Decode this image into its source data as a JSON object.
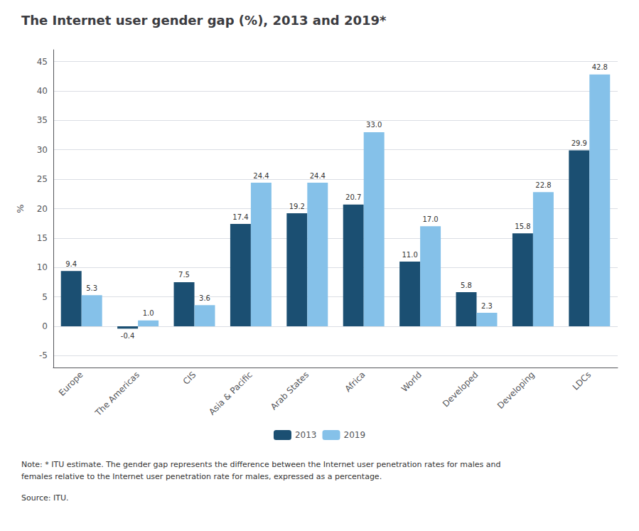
{
  "chart_data": {
    "type": "bar",
    "title": "The Internet user gender gap (%), 2013 and 2019*",
    "categories": [
      "Europe",
      "The Americas",
      "CIS",
      "Asia & Pacific",
      "Arab States",
      "Africa",
      "World",
      "Developed",
      "Developing",
      "LDCs"
    ],
    "series": [
      {
        "name": "2013",
        "color": "#1B4F72",
        "values": [
          9.4,
          -0.4,
          7.5,
          17.4,
          19.2,
          20.7,
          11.0,
          5.8,
          15.8,
          29.9
        ],
        "value_labels": [
          "9.4",
          "-0.4",
          "7.5",
          "17.4",
          "19.2",
          "20.7",
          "11.0",
          "5.8",
          "15.8",
          "29.9"
        ]
      },
      {
        "name": "2019",
        "color": "#85C1E9",
        "values": [
          5.3,
          1.0,
          3.6,
          24.4,
          24.4,
          33.0,
          17.0,
          2.3,
          22.8,
          42.8
        ],
        "value_labels": [
          "5.3",
          "1.0",
          "3.6",
          "24.4",
          "24.4",
          "33.0",
          "17.0",
          "2.3",
          "22.8",
          "42.8"
        ]
      }
    ],
    "ylabel": "%",
    "ylim": [
      -7,
      47
    ],
    "yticks": [
      -5,
      0,
      5,
      10,
      15,
      20,
      25,
      30,
      35,
      40,
      45
    ],
    "grid": true,
    "legend": "bottom",
    "data_labels": true,
    "note": "Note: * ITU estimate. The gender gap represents the difference between the Internet user penetration rates for males and\nfemales relative to the Internet user penetration rate for males, expressed as a percentage.",
    "source": "Source: ITU."
  }
}
